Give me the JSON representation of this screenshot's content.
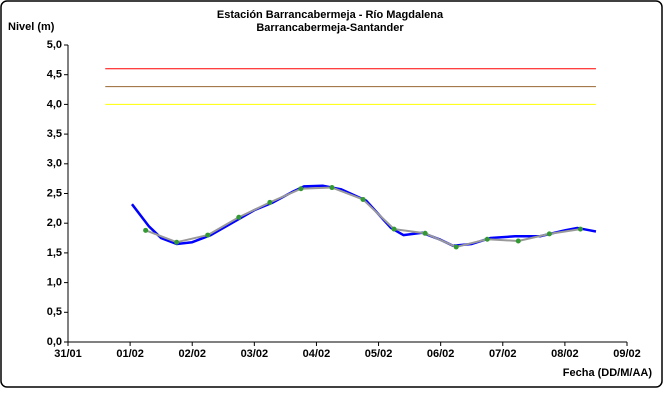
{
  "chart_data": {
    "type": "line",
    "title": "Estación Barrancabermeja - Río Magdalena",
    "subtitle": "Barrancabermeja-Santander",
    "y_label": "Nivel (m)",
    "x_label": "Fecha (DD/M/AA)",
    "xlim": [
      0,
      9
    ],
    "xticks": [
      {
        "value": 0,
        "label": "31/01"
      },
      {
        "value": 1,
        "label": "01/02"
      },
      {
        "value": 2,
        "label": "02/02"
      },
      {
        "value": 3,
        "label": "03/02"
      },
      {
        "value": 4,
        "label": "04/02"
      },
      {
        "value": 5,
        "label": "05/02"
      },
      {
        "value": 6,
        "label": "06/02"
      },
      {
        "value": 7,
        "label": "07/02"
      },
      {
        "value": 8,
        "label": "08/02"
      },
      {
        "value": 9,
        "label": "09/02"
      }
    ],
    "ylim": [
      0,
      5
    ],
    "yticks": [
      {
        "value": 0,
        "label": "0,0"
      },
      {
        "value": 0.5,
        "label": "0,5"
      },
      {
        "value": 1,
        "label": "1,0"
      },
      {
        "value": 1.5,
        "label": "1,5"
      },
      {
        "value": 2,
        "label": "2,0"
      },
      {
        "value": 2.5,
        "label": "2,5"
      },
      {
        "value": 3,
        "label": "3,0"
      },
      {
        "value": 3.5,
        "label": "3,5"
      },
      {
        "value": 4,
        "label": "4,0"
      },
      {
        "value": 4.5,
        "label": "4,5"
      },
      {
        "value": 5,
        "label": "5,0"
      }
    ],
    "series": [
      {
        "color": "#ff0000",
        "x": [
          0.6,
          8.5
        ],
        "values": [
          4.6,
          4.6
        ]
      },
      {
        "color": "#996633",
        "x": [
          0.6,
          8.5
        ],
        "values": [
          4.3,
          4.3
        ]
      },
      {
        "color": "#ffff00",
        "x": [
          0.6,
          8.5
        ],
        "values": [
          4.0,
          4.0
        ]
      },
      {
        "color": "#0000ff",
        "x": [
          1.03,
          1.3,
          1.5,
          1.75,
          2.0,
          2.3,
          2.6,
          3.0,
          3.3,
          3.6,
          3.8,
          4.1,
          4.4,
          4.8,
          5.2,
          5.4,
          5.7,
          6.0,
          6.2,
          6.5,
          6.8,
          7.2,
          7.6,
          8.0,
          8.2,
          8.4,
          8.5
        ],
        "values": [
          2.32,
          1.95,
          1.75,
          1.65,
          1.68,
          1.8,
          1.98,
          2.22,
          2.35,
          2.52,
          2.62,
          2.63,
          2.57,
          2.38,
          1.92,
          1.8,
          1.84,
          1.72,
          1.62,
          1.65,
          1.75,
          1.78,
          1.78,
          1.88,
          1.92,
          1.88,
          1.86
        ]
      },
      {
        "color": "#999999",
        "marker_color": "#339933",
        "markers": true,
        "x": [
          1.25,
          1.75,
          2.25,
          2.75,
          3.25,
          3.75,
          4.25,
          4.75,
          5.25,
          5.75,
          6.25,
          6.75,
          7.25,
          7.75,
          8.25
        ],
        "values": [
          1.88,
          1.68,
          1.8,
          2.1,
          2.35,
          2.58,
          2.6,
          2.4,
          1.9,
          1.83,
          1.6,
          1.73,
          1.7,
          1.82,
          1.9
        ]
      }
    ]
  }
}
